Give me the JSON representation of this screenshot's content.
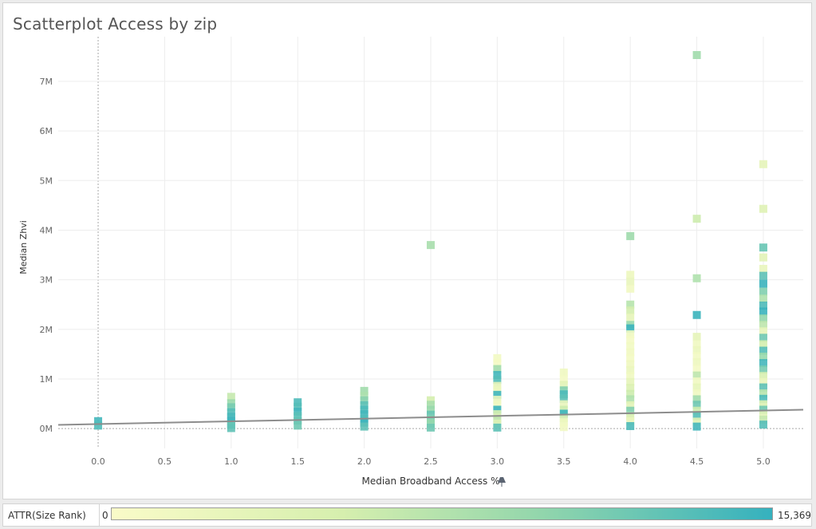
{
  "chart_data": {
    "type": "scatter",
    "title": "Scatterplot Access by zip",
    "xlabel": "Median Broadband Access %",
    "ylabel": "Median Zhvi",
    "xlim": [
      -0.3,
      5.3
    ],
    "ylim": [
      -400000,
      7900000
    ],
    "xticks": [
      "0.0",
      "0.5",
      "1.0",
      "1.5",
      "2.0",
      "2.5",
      "3.0",
      "3.5",
      "4.0",
      "4.5",
      "5.0"
    ],
    "yticks": [
      "0M",
      "1M",
      "2M",
      "3M",
      "4M",
      "5M",
      "6M",
      "7M"
    ],
    "trend_line": {
      "x": [
        -0.3,
        5.3
      ],
      "y": [
        75000,
        380000
      ]
    },
    "color_legend": {
      "label": "ATTR(Size Rank)",
      "min": "0",
      "max": "15,369",
      "low_color": "#f9fbc8",
      "high_color": "#35b1be"
    },
    "points": [
      {
        "x": 0.0,
        "y": 150000,
        "rank": 14500
      },
      {
        "x": 0.0,
        "y": 60000,
        "rank": 13800
      },
      {
        "x": 1.0,
        "y": 640000,
        "rank": 6500
      },
      {
        "x": 1.0,
        "y": 510000,
        "rank": 9500
      },
      {
        "x": 1.0,
        "y": 430000,
        "rank": 11500
      },
      {
        "x": 1.0,
        "y": 330000,
        "rank": 13500
      },
      {
        "x": 1.0,
        "y": 240000,
        "rank": 14200
      },
      {
        "x": 1.0,
        "y": 160000,
        "rank": 14800
      },
      {
        "x": 1.0,
        "y": 80000,
        "rank": 12500
      },
      {
        "x": 1.0,
        "y": 10000,
        "rank": 13000
      },
      {
        "x": 1.5,
        "y": 530000,
        "rank": 14000
      },
      {
        "x": 1.5,
        "y": 440000,
        "rank": 13500
      },
      {
        "x": 1.5,
        "y": 340000,
        "rank": 14600
      },
      {
        "x": 1.5,
        "y": 250000,
        "rank": 13200
      },
      {
        "x": 1.5,
        "y": 160000,
        "rank": 12800
      },
      {
        "x": 1.5,
        "y": 60000,
        "rank": 12000
      },
      {
        "x": 2.0,
        "y": 760000,
        "rank": 9000
      },
      {
        "x": 2.0,
        "y": 660000,
        "rank": 8200
      },
      {
        "x": 2.0,
        "y": 570000,
        "rank": 10500
      },
      {
        "x": 2.0,
        "y": 470000,
        "rank": 13000
      },
      {
        "x": 2.0,
        "y": 380000,
        "rank": 14000
      },
      {
        "x": 2.0,
        "y": 290000,
        "rank": 14500
      },
      {
        "x": 2.0,
        "y": 200000,
        "rank": 13800
      },
      {
        "x": 2.0,
        "y": 120000,
        "rank": 14900
      },
      {
        "x": 2.0,
        "y": 40000,
        "rank": 13000
      },
      {
        "x": 2.5,
        "y": 3700000,
        "rank": 8500
      },
      {
        "x": 2.5,
        "y": 570000,
        "rank": 5500
      },
      {
        "x": 2.5,
        "y": 480000,
        "rank": 8500
      },
      {
        "x": 2.5,
        "y": 380000,
        "rank": 9500
      },
      {
        "x": 2.5,
        "y": 280000,
        "rank": 12500
      },
      {
        "x": 2.5,
        "y": 190000,
        "rank": 11000
      },
      {
        "x": 2.5,
        "y": 100000,
        "rank": 9800
      },
      {
        "x": 2.5,
        "y": 20000,
        "rank": 12000
      },
      {
        "x": 3.0,
        "y": 1420000,
        "rank": 1000
      },
      {
        "x": 3.0,
        "y": 1320000,
        "rank": 800
      },
      {
        "x": 3.0,
        "y": 1200000,
        "rank": 9000
      },
      {
        "x": 3.0,
        "y": 1080000,
        "rank": 14500
      },
      {
        "x": 3.0,
        "y": 980000,
        "rank": 13500
      },
      {
        "x": 3.0,
        "y": 860000,
        "rank": 3000
      },
      {
        "x": 3.0,
        "y": 770000,
        "rank": 2000
      },
      {
        "x": 3.0,
        "y": 680000,
        "rank": 14800
      },
      {
        "x": 3.0,
        "y": 580000,
        "rank": 2500
      },
      {
        "x": 3.0,
        "y": 480000,
        "rank": 1500
      },
      {
        "x": 3.0,
        "y": 380000,
        "rank": 15000
      },
      {
        "x": 3.0,
        "y": 290000,
        "rank": 5000
      },
      {
        "x": 3.0,
        "y": 190000,
        "rank": 7000
      },
      {
        "x": 3.0,
        "y": 100000,
        "rank": 4000
      },
      {
        "x": 3.0,
        "y": 20000,
        "rank": 13000
      },
      {
        "x": 3.5,
        "y": 1130000,
        "rank": 1500
      },
      {
        "x": 3.5,
        "y": 990000,
        "rank": 900
      },
      {
        "x": 3.5,
        "y": 880000,
        "rank": 3500
      },
      {
        "x": 3.5,
        "y": 770000,
        "rank": 11000
      },
      {
        "x": 3.5,
        "y": 690000,
        "rank": 14000
      },
      {
        "x": 3.5,
        "y": 600000,
        "rank": 13000
      },
      {
        "x": 3.5,
        "y": 490000,
        "rank": 2500
      },
      {
        "x": 3.5,
        "y": 380000,
        "rank": 6000
      },
      {
        "x": 3.5,
        "y": 300000,
        "rank": 15000
      },
      {
        "x": 3.5,
        "y": 210000,
        "rank": 4000
      },
      {
        "x": 3.5,
        "y": 120000,
        "rank": 1800
      },
      {
        "x": 3.5,
        "y": 30000,
        "rank": 1200
      },
      {
        "x": 4.0,
        "y": 3880000,
        "rank": 9200
      },
      {
        "x": 4.0,
        "y": 3100000,
        "rank": 1800
      },
      {
        "x": 4.0,
        "y": 2960000,
        "rank": 2500
      },
      {
        "x": 4.0,
        "y": 2820000,
        "rank": 1200
      },
      {
        "x": 4.0,
        "y": 2500000,
        "rank": 7500
      },
      {
        "x": 4.0,
        "y": 2380000,
        "rank": 5500
      },
      {
        "x": 4.0,
        "y": 2240000,
        "rank": 3000
      },
      {
        "x": 4.0,
        "y": 2090000,
        "rank": 9500
      },
      {
        "x": 4.0,
        "y": 2020000,
        "rank": 15000
      },
      {
        "x": 4.0,
        "y": 1900000,
        "rank": 1500
      },
      {
        "x": 4.0,
        "y": 1780000,
        "rank": 800
      },
      {
        "x": 4.0,
        "y": 1660000,
        "rank": 1000
      },
      {
        "x": 4.0,
        "y": 1540000,
        "rank": 1200
      },
      {
        "x": 4.0,
        "y": 1420000,
        "rank": 900
      },
      {
        "x": 4.0,
        "y": 1300000,
        "rank": 1600
      },
      {
        "x": 4.0,
        "y": 1180000,
        "rank": 2200
      },
      {
        "x": 4.0,
        "y": 1060000,
        "rank": 1400
      },
      {
        "x": 4.0,
        "y": 940000,
        "rank": 3000
      },
      {
        "x": 4.0,
        "y": 820000,
        "rank": 4500
      },
      {
        "x": 4.0,
        "y": 700000,
        "rank": 6000
      },
      {
        "x": 4.0,
        "y": 590000,
        "rank": 8000
      },
      {
        "x": 4.0,
        "y": 470000,
        "rank": 3500
      },
      {
        "x": 4.0,
        "y": 360000,
        "rank": 11000
      },
      {
        "x": 4.0,
        "y": 250000,
        "rank": 5000
      },
      {
        "x": 4.0,
        "y": 150000,
        "rank": 2500
      },
      {
        "x": 4.0,
        "y": 50000,
        "rank": 14000
      },
      {
        "x": 4.5,
        "y": 7530000,
        "rank": 9000
      },
      {
        "x": 4.5,
        "y": 4230000,
        "rank": 6000
      },
      {
        "x": 4.5,
        "y": 3030000,
        "rank": 8000
      },
      {
        "x": 4.5,
        "y": 2290000,
        "rank": 15000
      },
      {
        "x": 4.5,
        "y": 1850000,
        "rank": 3000
      },
      {
        "x": 4.5,
        "y": 1700000,
        "rank": 1500
      },
      {
        "x": 4.5,
        "y": 1580000,
        "rank": 2200
      },
      {
        "x": 4.5,
        "y": 1460000,
        "rank": 1000
      },
      {
        "x": 4.5,
        "y": 1340000,
        "rank": 1800
      },
      {
        "x": 4.5,
        "y": 1200000,
        "rank": 900
      },
      {
        "x": 4.5,
        "y": 1070000,
        "rank": 7000
      },
      {
        "x": 4.5,
        "y": 950000,
        "rank": 1200
      },
      {
        "x": 4.5,
        "y": 830000,
        "rank": 2800
      },
      {
        "x": 4.5,
        "y": 710000,
        "rank": 1500
      },
      {
        "x": 4.5,
        "y": 590000,
        "rank": 9000
      },
      {
        "x": 4.5,
        "y": 480000,
        "rank": 12000
      },
      {
        "x": 4.5,
        "y": 360000,
        "rank": 6000
      },
      {
        "x": 4.5,
        "y": 250000,
        "rank": 13500
      },
      {
        "x": 4.5,
        "y": 140000,
        "rank": 4000
      },
      {
        "x": 4.5,
        "y": 40000,
        "rank": 14500
      },
      {
        "x": 5.0,
        "y": 5330000,
        "rank": 3000
      },
      {
        "x": 5.0,
        "y": 4430000,
        "rank": 4000
      },
      {
        "x": 5.0,
        "y": 3650000,
        "rank": 12500
      },
      {
        "x": 5.0,
        "y": 3450000,
        "rank": 3500
      },
      {
        "x": 5.0,
        "y": 3220000,
        "rank": 2500
      },
      {
        "x": 5.0,
        "y": 3080000,
        "rank": 13000
      },
      {
        "x": 5.0,
        "y": 2920000,
        "rank": 15200
      },
      {
        "x": 5.0,
        "y": 2760000,
        "rank": 11000
      },
      {
        "x": 5.0,
        "y": 2620000,
        "rank": 8000
      },
      {
        "x": 5.0,
        "y": 2480000,
        "rank": 14000
      },
      {
        "x": 5.0,
        "y": 2360000,
        "rank": 15100
      },
      {
        "x": 5.0,
        "y": 2220000,
        "rank": 10000
      },
      {
        "x": 5.0,
        "y": 2090000,
        "rank": 7000
      },
      {
        "x": 5.0,
        "y": 1960000,
        "rank": 3000
      },
      {
        "x": 5.0,
        "y": 1830000,
        "rank": 12000
      },
      {
        "x": 5.0,
        "y": 1700000,
        "rank": 5500
      },
      {
        "x": 5.0,
        "y": 1570000,
        "rank": 13500
      },
      {
        "x": 5.0,
        "y": 1450000,
        "rank": 9500
      },
      {
        "x": 5.0,
        "y": 1320000,
        "rank": 14500
      },
      {
        "x": 5.0,
        "y": 1190000,
        "rank": 11500
      },
      {
        "x": 5.0,
        "y": 1060000,
        "rank": 5000
      },
      {
        "x": 5.0,
        "y": 940000,
        "rank": 2500
      },
      {
        "x": 5.0,
        "y": 830000,
        "rank": 13000
      },
      {
        "x": 5.0,
        "y": 710000,
        "rank": 7500
      },
      {
        "x": 5.0,
        "y": 600000,
        "rank": 14000
      },
      {
        "x": 5.0,
        "y": 490000,
        "rank": 4500
      },
      {
        "x": 5.0,
        "y": 380000,
        "rank": 12000
      },
      {
        "x": 5.0,
        "y": 280000,
        "rank": 3500
      },
      {
        "x": 5.0,
        "y": 180000,
        "rank": 6500
      },
      {
        "x": 5.0,
        "y": 80000,
        "rank": 13500
      }
    ]
  }
}
